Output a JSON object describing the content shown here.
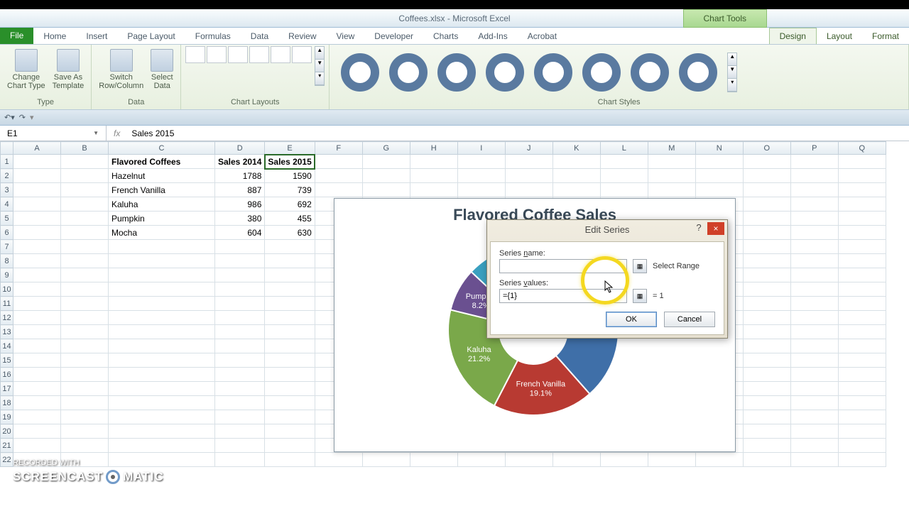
{
  "window": {
    "title": "Coffees.xlsx - Microsoft Excel",
    "chart_tools": "Chart Tools"
  },
  "tabs": {
    "file": "File",
    "items": [
      "Home",
      "Insert",
      "Page Layout",
      "Formulas",
      "Data",
      "Review",
      "View",
      "Developer",
      "Charts",
      "Add-Ins",
      "Acrobat"
    ],
    "context": [
      "Design",
      "Layout",
      "Format"
    ],
    "active": "Design"
  },
  "ribbon": {
    "type_group": "Type",
    "change_type": "Change\nChart Type",
    "save_template": "Save As\nTemplate",
    "data_group": "Data",
    "switch": "Switch\nRow/Column",
    "select_data": "Select\nData",
    "layouts_group": "Chart Layouts",
    "styles_group": "Chart Styles",
    "style_color": "#5a7aa0"
  },
  "namebox": "E1",
  "formula": "Sales 2015",
  "columns": [
    "A",
    "B",
    "C",
    "D",
    "E",
    "F",
    "G",
    "H",
    "I",
    "J",
    "K",
    "L",
    "M",
    "N",
    "O",
    "P",
    "Q"
  ],
  "row_count": 22,
  "cells": {
    "hdr_c": "Flavored Coffees",
    "hdr_d": "Sales 2014",
    "hdr_e": "Sales 2015",
    "rows": [
      {
        "c": "Hazelnut",
        "d": "1788",
        "e": "1590"
      },
      {
        "c": "French Vanilla",
        "d": "887",
        "e": "739"
      },
      {
        "c": "Kaluha",
        "d": "986",
        "e": "692"
      },
      {
        "c": "Pumpkin",
        "d": "380",
        "e": "455"
      },
      {
        "c": "Mocha",
        "d": "604",
        "e": "630"
      }
    ]
  },
  "chart": {
    "title": "Flavored Coffee Sales",
    "center_label": "1",
    "type": "doughnut",
    "inner_radius": 48,
    "outer_radius": 120,
    "background": "#ffffff",
    "slices": [
      {
        "label": "Hazelnut",
        "pct": "38.5%",
        "value": 1788,
        "color": "#3f6fa8"
      },
      {
        "label": "French Vanilla",
        "pct": "19.1%",
        "value": 887,
        "color": "#b83a32"
      },
      {
        "label": "Kaluha",
        "pct": "21.2%",
        "value": 986,
        "color": "#7aa84a"
      },
      {
        "label": "Pumpkin",
        "pct": "8.2%",
        "value": 380,
        "color": "#6a5090"
      },
      {
        "label": "Mocha",
        "pct": "13.0%",
        "value": 604,
        "color": "#3aa0c0"
      }
    ],
    "label_color": "#ffffff",
    "label_fontsize": 11
  },
  "dialog": {
    "title": "Edit Series",
    "name_label": "Series name:",
    "values_label": "Series values:",
    "name_value": "",
    "values_value": "={1}",
    "hint_name": "Select Range",
    "hint_values": "= 1",
    "ok": "OK",
    "cancel": "Cancel",
    "help": "?",
    "close": "×"
  },
  "watermark": {
    "pre": "RECORDED WITH",
    "main": "SCREENCAST",
    "suffix": "MATIC"
  }
}
